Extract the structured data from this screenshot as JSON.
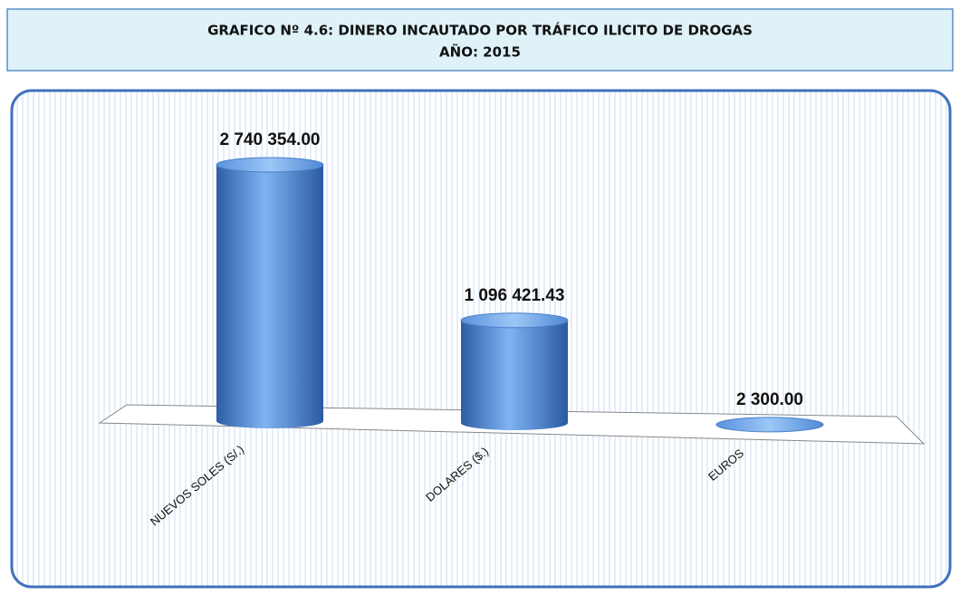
{
  "chart_data": {
    "type": "bar",
    "title": "GRAFICO Nº 4.6:  DINERO INCAUTADO POR TRÁFICO ILICITO DE DROGAS",
    "subtitle": "AÑO: 2015",
    "categories": [
      "NUEVOS SOLES (S/.)",
      "DOLARES ($.)",
      "EUROS"
    ],
    "values": [
      2740354,
      1096421.43,
      2300
    ],
    "value_labels": [
      "2 740 354.00",
      "1 096 421.43",
      "2 300.00"
    ],
    "color": "#4a82d0"
  }
}
